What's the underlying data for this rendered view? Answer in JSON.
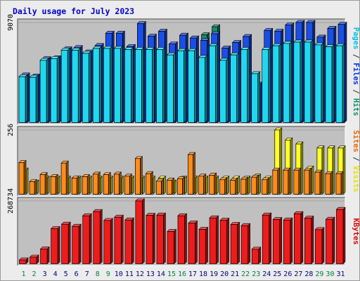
{
  "chart_data": {
    "type": "bar",
    "title": "Daily usage for July 2023",
    "categories": [
      "1",
      "2",
      "3",
      "4",
      "5",
      "6",
      "7",
      "8",
      "9",
      "10",
      "11",
      "12",
      "13",
      "14",
      "15",
      "16",
      "17",
      "18",
      "19",
      "20",
      "21",
      "22",
      "23",
      "24",
      "25",
      "26",
      "27",
      "28",
      "29",
      "30",
      "31"
    ],
    "weekend_days": [
      "1",
      "2",
      "8",
      "9",
      "15",
      "16",
      "22",
      "23",
      "29",
      "30"
    ],
    "panels": [
      {
        "id": "hits",
        "max_label": "9070",
        "ylim": [
          0,
          9070
        ],
        "side_label_parts": [
          {
            "text": "Pages",
            "color": "#00c0e0"
          },
          {
            "text": " / ",
            "color": "#333333"
          },
          {
            "text": "Files",
            "color": "#0033ee"
          },
          {
            "text": " / ",
            "color": "#333333"
          },
          {
            "text": "Hits",
            "color": "#0e8f6a"
          }
        ],
        "series": [
          {
            "name": "Hits",
            "color": "#0e8f6a",
            "values": [
              4310,
              4210,
              5780,
              5870,
              6670,
              6790,
              6390,
              6980,
              8090,
              8090,
              6890,
              8960,
              7820,
              8270,
              7120,
              7910,
              7660,
              7950,
              8680,
              6750,
              7250,
              7790,
              3480,
              8340,
              8270,
              8840,
              9070,
              9070,
              7740,
              8530,
              8900
            ]
          },
          {
            "name": "Files",
            "color": "#1a4fe6",
            "values": [
              4310,
              4210,
              5780,
              5870,
              6670,
              6790,
              6390,
              6980,
              8090,
              8090,
              6890,
              8960,
              7820,
              8270,
              7120,
              7910,
              7660,
              7450,
              8050,
              6750,
              7250,
              7790,
              3480,
              8340,
              8270,
              8840,
              9070,
              9070,
              7740,
              8530,
              8900
            ]
          },
          {
            "name": "Pages",
            "color": "#22d8f0",
            "values": [
              4160,
              4100,
              5640,
              5800,
              6560,
              6560,
              6270,
              6720,
              6720,
              6720,
              6620,
              6620,
              6620,
              6620,
              6130,
              6510,
              6510,
              5900,
              6960,
              5640,
              6130,
              6620,
              4430,
              6620,
              6960,
              7170,
              7290,
              7290,
              7040,
              6870,
              6960
            ]
          }
        ]
      },
      {
        "id": "visits",
        "max_label": "256",
        "ylim": [
          0,
          256
        ],
        "side_label_parts": [
          {
            "text": "Sites",
            "color": "#e86a00"
          },
          {
            "text": " / ",
            "color": "#333333"
          },
          {
            "text": "Visits",
            "color": "#e8e000"
          }
        ],
        "series": [
          {
            "name": "Visits",
            "color": "#ffff22",
            "values": [
              96,
              48,
              64,
              64,
              64,
              64,
              64,
              64,
              64,
              64,
              64,
              64,
              64,
              64,
              48,
              64,
              64,
              64,
              64,
              64,
              64,
              64,
              72,
              64,
              256,
              216,
              200,
              104,
              184,
              184,
              184
            ]
          },
          {
            "name": "Sites",
            "color": "#ff8c1a",
            "values": [
              126,
              50,
              78,
              70,
              124,
              64,
              70,
              80,
              78,
              80,
              72,
              142,
              82,
              52,
              56,
              62,
              158,
              72,
              76,
              58,
              56,
              60,
              68,
              58,
              96,
              96,
              96,
              96,
              88,
              82,
              82
            ]
          }
        ]
      },
      {
        "id": "kbytes",
        "max_label": "268734",
        "ylim": [
          0,
          268734
        ],
        "side_label_parts": [
          {
            "text": "KBytes",
            "color": "#e00000"
          }
        ],
        "series": [
          {
            "name": "KBytes",
            "color": "#ee1c1c",
            "values": [
              16300,
              28500,
              63200,
              150000,
              169000,
              160000,
              205000,
              223000,
              185000,
              199000,
              187000,
              268734,
              207000,
              208000,
              138000,
              205000,
              174000,
              147000,
              196000,
              186000,
              168000,
              163000,
              62000,
              208000,
              189000,
              187000,
              214000,
              195000,
              146000,
              190000,
              232000
            ]
          }
        ]
      }
    ],
    "colors": {
      "title": "#0000cc",
      "weekday_label": "#000080",
      "weekend_label": "#00804a",
      "plot_background": "#c0c0c0",
      "frame_background": "#ececec"
    }
  }
}
